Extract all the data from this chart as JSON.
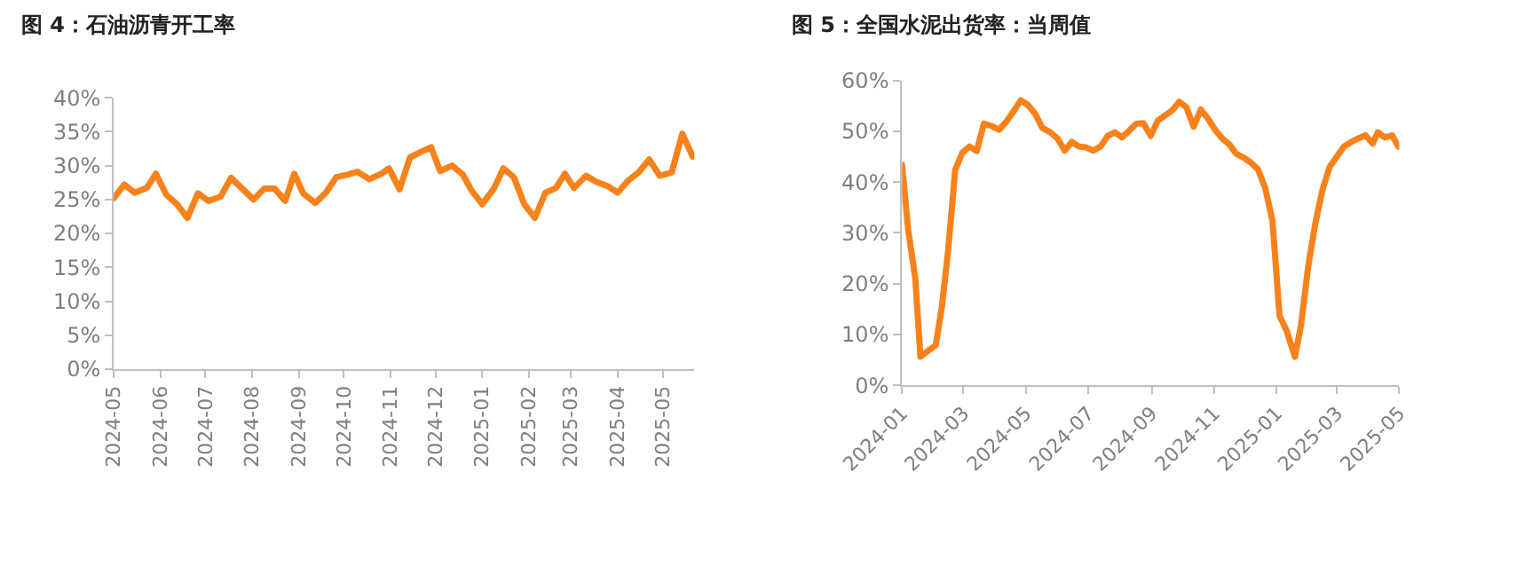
{
  "chart_data": [
    {
      "type": "line",
      "title": "图 4：石油沥青开工率",
      "xlim": [
        "2024-05-01",
        "2025-05-22"
      ],
      "xticks": [
        "2024-05",
        "2024-06",
        "2024-07",
        "2024-08",
        "2024-09",
        "2024-10",
        "2024-11",
        "2024-12",
        "2025-01",
        "2025-02",
        "2025-03",
        "2025-04",
        "2025-05"
      ],
      "ylim": [
        0,
        40
      ],
      "yticks": [
        {
          "value": 0,
          "label": "0%"
        },
        {
          "value": 5,
          "label": "5%"
        },
        {
          "value": 10,
          "label": "10%"
        },
        {
          "value": 15,
          "label": "15%"
        },
        {
          "value": 20,
          "label": "20%"
        },
        {
          "value": 25,
          "label": "25%"
        },
        {
          "value": 30,
          "label": "30%"
        },
        {
          "value": 35,
          "label": "35%"
        },
        {
          "value": 40,
          "label": "40%"
        }
      ],
      "marker": "none",
      "line_style": "solid",
      "x": [
        "2024-05-01",
        "2024-05-08",
        "2024-05-15",
        "2024-05-23",
        "2024-05-29",
        "2024-06-05",
        "2024-06-12",
        "2024-06-19",
        "2024-06-26",
        "2024-07-03",
        "2024-07-11",
        "2024-07-18",
        "2024-07-25",
        "2024-08-02",
        "2024-08-09",
        "2024-08-16",
        "2024-08-23",
        "2024-08-29",
        "2024-09-04",
        "2024-09-12",
        "2024-09-19",
        "2024-09-26",
        "2024-10-04",
        "2024-10-10",
        "2024-10-18",
        "2024-10-26",
        "2024-10-31",
        "2024-11-07",
        "2024-11-14",
        "2024-11-21",
        "2024-11-28",
        "2024-12-04",
        "2024-12-12",
        "2024-12-19",
        "2024-12-25",
        "2025-01-01",
        "2025-01-09",
        "2025-01-15",
        "2025-01-22",
        "2025-01-29",
        "2025-02-05",
        "2025-02-12",
        "2025-02-19",
        "2025-02-25",
        "2025-03-03",
        "2025-03-11",
        "2025-03-18",
        "2025-03-26",
        "2025-04-01",
        "2025-04-08",
        "2025-04-15",
        "2025-04-22",
        "2025-04-29",
        "2025-05-07",
        "2025-05-14",
        "2025-05-21"
      ],
      "series": [
        {
          "color": "#f7821b",
          "values": [
            25.2,
            27.2,
            26.0,
            26.7,
            28.8,
            25.7,
            24.3,
            22.3,
            25.9,
            24.8,
            25.4,
            28.2,
            26.7,
            25.0,
            26.6,
            26.6,
            24.8,
            28.8,
            25.9,
            24.5,
            26.0,
            28.3,
            28.7,
            29.1,
            28.0,
            28.8,
            29.6,
            26.5,
            31.2,
            32.0,
            32.7,
            29.2,
            30.0,
            28.7,
            26.3,
            24.3,
            26.7,
            29.6,
            28.3,
            24.3,
            22.3,
            26.0,
            26.7,
            28.8,
            26.7,
            28.5,
            27.6,
            26.9,
            26.0,
            27.8,
            29.0,
            30.9,
            28.5,
            29.0,
            34.7,
            31.3
          ]
        }
      ]
    },
    {
      "type": "line",
      "title": "图 5：全国水泥出货率：当周值",
      "xlim": [
        "2024-01-01",
        "2025-05-01"
      ],
      "xticks": [
        "2024-01",
        "2024-03",
        "2024-05",
        "2024-07",
        "2024-09",
        "2024-11",
        "2025-01",
        "2025-03",
        "2025-05"
      ],
      "ylim": [
        0,
        60
      ],
      "yticks": [
        {
          "value": 0,
          "label": "0%"
        },
        {
          "value": 10,
          "label": "10%"
        },
        {
          "value": 20,
          "label": "20%"
        },
        {
          "value": 30,
          "label": "30%"
        },
        {
          "value": 40,
          "label": "40%"
        },
        {
          "value": 50,
          "label": "50%"
        },
        {
          "value": 60,
          "label": "60%"
        }
      ],
      "marker": "none",
      "line_style": "solid",
      "x": [
        "2024-01-01",
        "2024-01-07",
        "2024-01-14",
        "2024-01-19",
        "2024-01-26",
        "2024-02-03",
        "2024-02-09",
        "2024-02-15",
        "2024-02-22",
        "2024-02-29",
        "2024-03-07",
        "2024-03-14",
        "2024-03-21",
        "2024-03-29",
        "2024-04-05",
        "2024-04-12",
        "2024-04-19",
        "2024-04-26",
        "2024-05-03",
        "2024-05-10",
        "2024-05-17",
        "2024-05-25",
        "2024-06-01",
        "2024-06-08",
        "2024-06-15",
        "2024-06-22",
        "2024-06-29",
        "2024-07-06",
        "2024-07-13",
        "2024-07-20",
        "2024-07-27",
        "2024-08-03",
        "2024-08-10",
        "2024-08-17",
        "2024-08-24",
        "2024-08-31",
        "2024-09-07",
        "2024-09-14",
        "2024-09-21",
        "2024-09-28",
        "2024-10-05",
        "2024-10-12",
        "2024-10-19",
        "2024-10-26",
        "2024-11-02",
        "2024-11-09",
        "2024-11-16",
        "2024-11-23",
        "2024-11-30",
        "2024-12-07",
        "2024-12-14",
        "2024-12-21",
        "2024-12-28",
        "2025-01-04",
        "2025-01-11",
        "2025-01-19",
        "2025-01-25",
        "2025-02-01",
        "2025-02-08",
        "2025-02-15",
        "2025-02-22",
        "2025-03-01",
        "2025-03-08",
        "2025-03-15",
        "2025-03-22",
        "2025-03-29",
        "2025-04-05",
        "2025-04-10",
        "2025-04-17",
        "2025-04-24",
        "2025-04-30"
      ],
      "series": [
        {
          "color": "#f7821b",
          "values": [
            43.4,
            30.7,
            21.0,
            5.6,
            6.7,
            7.9,
            15.5,
            26.4,
            42.4,
            45.8,
            47.0,
            46.1,
            51.5,
            51.0,
            50.3,
            51.9,
            53.9,
            56.1,
            55.2,
            53.5,
            50.7,
            49.8,
            48.6,
            46.2,
            47.9,
            47.0,
            46.8,
            46.2,
            47.0,
            49.1,
            49.8,
            48.8,
            50.1,
            51.5,
            51.6,
            49.1,
            52.1,
            53.1,
            54.1,
            55.8,
            54.7,
            50.9,
            54.3,
            52.5,
            50.3,
            48.6,
            47.4,
            45.5,
            44.8,
            43.8,
            42.5,
            38.8,
            32.5,
            13.7,
            10.7,
            5.6,
            11.9,
            23.4,
            31.9,
            38.5,
            43.0,
            45.0,
            47.0,
            47.9,
            48.6,
            49.2,
            47.6,
            49.8,
            48.8,
            49.2,
            47.0
          ]
        }
      ]
    }
  ]
}
